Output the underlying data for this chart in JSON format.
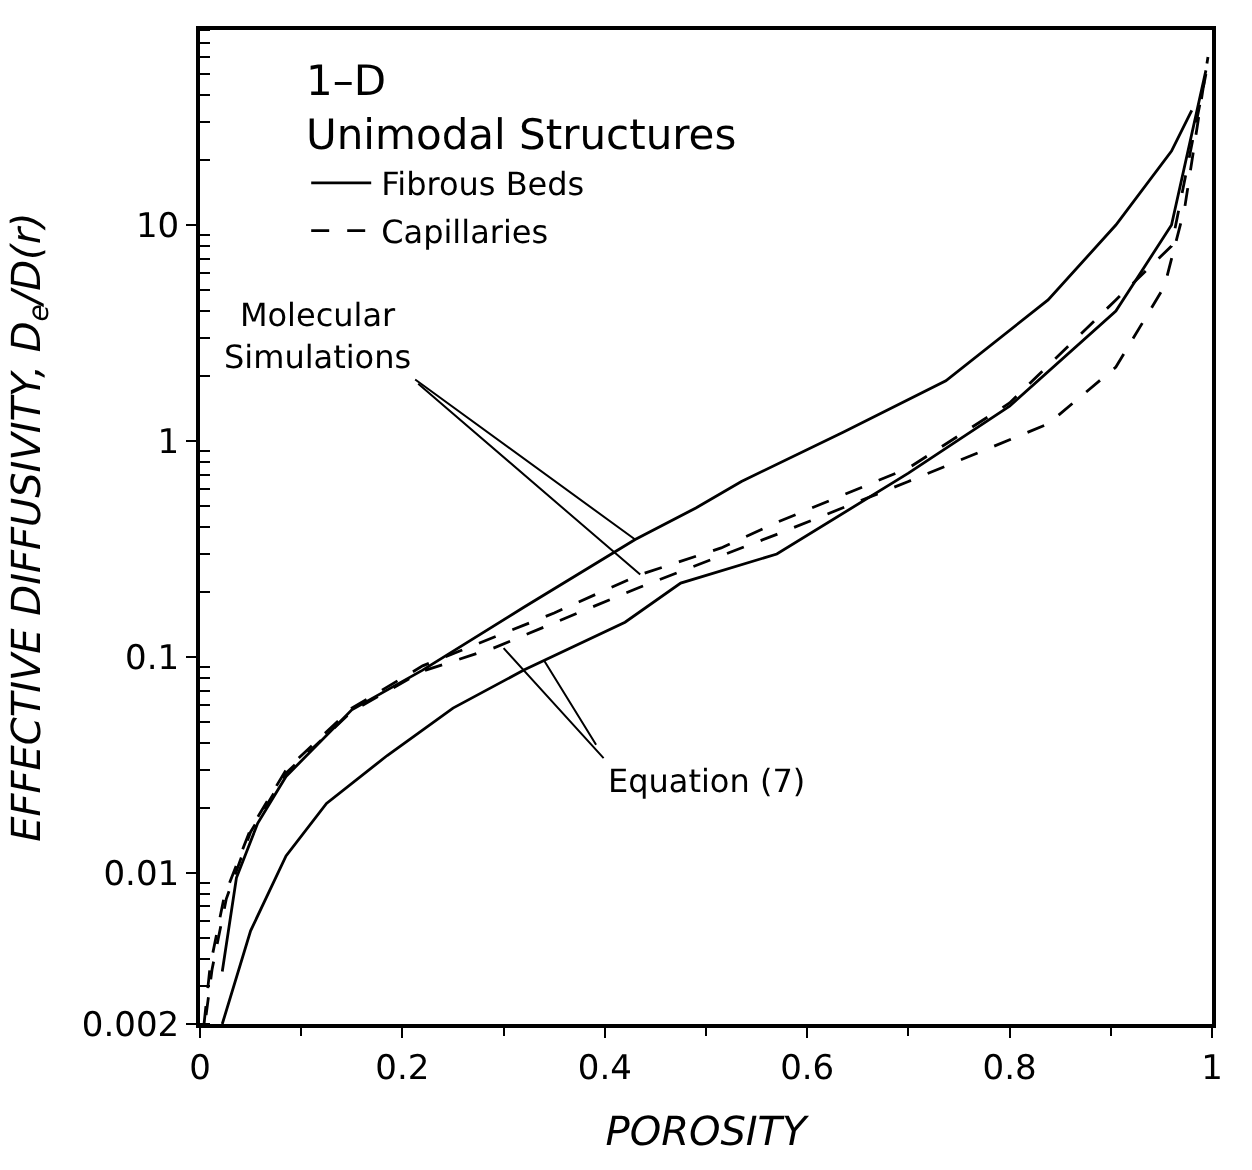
{
  "chart_data": {
    "type": "line",
    "legend_title": "1–D\nUnimodal Structures",
    "xlabel": "POROSITY",
    "ylabel": "EFFECTIVE DIFFUSIVITY, D$_{e}$/D(r)",
    "series": [
      {
        "name": "Fibrous Beds",
        "color": "#000000",
        "line_style": "solid",
        "x": [
          0.022,
          0.036,
          0.057,
          0.085,
          0.15,
          0.22,
          0.32,
          0.43,
          0.49,
          0.535,
          0.636,
          0.737,
          0.838,
          0.905,
          0.96,
          0.98
        ],
        "values": [
          0.0035,
          0.0095,
          0.017,
          0.028,
          0.057,
          0.087,
          0.17,
          0.35,
          0.49,
          0.65,
          1.1,
          1.9,
          4.5,
          10,
          22,
          34
        ]
      },
      {
        "color": "#000000",
        "line_style": "solid",
        "x": [
          0.022,
          0.05,
          0.085,
          0.125,
          0.185,
          0.25,
          0.32,
          0.42,
          0.475,
          0.57,
          0.7,
          0.8,
          0.905,
          0.96,
          0.994
        ],
        "values": [
          0.002,
          0.0054,
          0.012,
          0.021,
          0.035,
          0.058,
          0.087,
          0.145,
          0.22,
          0.3,
          0.71,
          1.45,
          4,
          10,
          52
        ]
      },
      {
        "name": "Capillaries",
        "color": "#000000",
        "line_style": "dashed",
        "x": [
          0.004,
          0.01,
          0.024,
          0.05,
          0.085,
          0.15,
          0.22,
          0.35,
          0.434,
          0.515,
          0.57,
          0.7,
          0.8,
          0.905,
          0.96,
          0.994
        ],
        "values": [
          0.002,
          0.0037,
          0.0078,
          0.016,
          0.03,
          0.058,
          0.091,
          0.16,
          0.24,
          0.32,
          0.42,
          0.75,
          1.5,
          4.5,
          8,
          50
        ]
      },
      {
        "color": "#000000",
        "line_style": "dashed",
        "x": [
          0.006,
          0.012,
          0.026,
          0.05,
          0.085,
          0.15,
          0.22,
          0.29,
          0.434,
          0.57,
          0.7,
          0.838,
          0.905,
          0.953,
          0.973,
          0.996
        ],
        "values": [
          0.0022,
          0.0036,
          0.0076,
          0.0155,
          0.029,
          0.056,
          0.086,
          0.11,
          0.21,
          0.37,
          0.65,
          1.2,
          2.2,
          5.2,
          12,
          60
        ]
      }
    ],
    "annotations": [
      {
        "text": "Molecular\nSimulations",
        "x": 0.43,
        "y": 0.35
      },
      {
        "text": "Equation (7)",
        "x": 0.3,
        "y": 0.11
      }
    ],
    "log": "y",
    "xlim": [
      0,
      1
    ],
    "ylim": [
      0.002,
      80
    ],
    "xticks": [
      0,
      0.2,
      0.4,
      0.6,
      0.8,
      1
    ],
    "yticks": [
      0.002,
      0.01,
      0.1,
      1,
      10
    ],
    "legend": "top left"
  }
}
